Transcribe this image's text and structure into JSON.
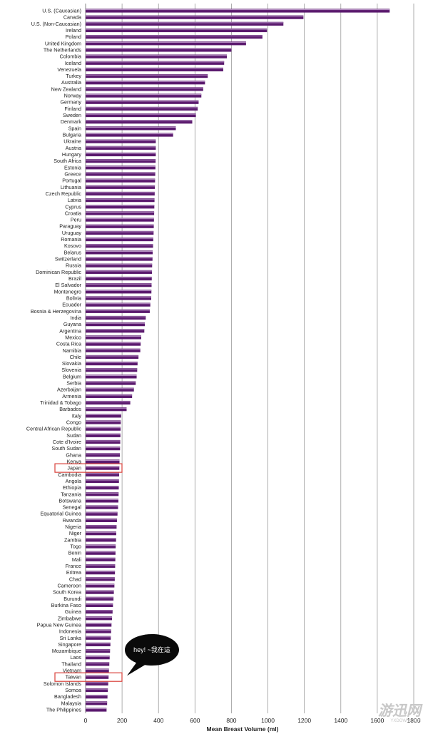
{
  "chart_data": {
    "type": "bar",
    "orientation": "horizontal",
    "xlabel": "Mean Breast Volume (ml)",
    "xlim": [
      0,
      1800
    ],
    "xticks": [
      0,
      200,
      400,
      600,
      800,
      1000,
      1200,
      1400,
      1600,
      1800
    ],
    "categories": [
      "U.S. (Caucasian)",
      "Canada",
      "U.S. (Non-Caucasian)",
      "Ireland",
      "Poland",
      "United Kingdom",
      "The Netherlands",
      "Colombia",
      "Iceland",
      "Venezuela",
      "Turkey",
      "Australia",
      "New Zealand",
      "Norway",
      "Germany",
      "Finland",
      "Sweden",
      "Denmark",
      "Spain",
      "Bulgaria",
      "Ukraine",
      "Austria",
      "Hungary",
      "South Africa",
      "Estonia",
      "Greece",
      "Portugal",
      "Lithuania",
      "Czech Republic",
      "Latvia",
      "Cyprus",
      "Croatia",
      "Peru",
      "Paraguay",
      "Uruguay",
      "Romania",
      "Kosovo",
      "Belarus",
      "Switzerland",
      "Russia",
      "Dominican Republic",
      "Brazil",
      "El Salvador",
      "Montenegro",
      "Bolivia",
      "Ecuador",
      "Bosnia & Herzegovina",
      "India",
      "Guyana",
      "Argentina",
      "Mexico",
      "Costa Rica",
      "Namibia",
      "Chile",
      "Slovakia",
      "Slovenia",
      "Belgium",
      "Serbia",
      "Azerbaijan",
      "Armenia",
      "Trinidad & Tobago",
      "Barbados",
      "Italy",
      "Congo",
      "Central African Republic",
      "Sudan",
      "Cote d'Ivoire",
      "South Sudan",
      "Ghana",
      "Kenya",
      "Japan",
      "Cambodia",
      "Angola",
      "Ethiopia",
      "Tanzania",
      "Botswana",
      "Senegal",
      "Equatorial Guinea",
      "Rwanda",
      "Nigeria",
      "Niger",
      "Zambia",
      "Togo",
      "Benin",
      "Mali",
      "France",
      "Eritrea",
      "Chad",
      "Cameroon",
      "South Korea",
      "Burundi",
      "Burkina Faso",
      "Guinea",
      "Zimbabwe",
      "Papua New Guinea",
      "Indonesia",
      "Sri Lanka",
      "Singapore",
      "Mozambique",
      "Laos",
      "Thailand",
      "Vietnam",
      "Taiwan",
      "Solomon Islands",
      "Somoa",
      "Bangladesh",
      "Malaysia",
      "The Philippines"
    ],
    "values": [
      1668,
      1195,
      1085,
      995,
      970,
      880,
      800,
      775,
      760,
      755,
      670,
      655,
      645,
      635,
      620,
      615,
      605,
      585,
      495,
      480,
      385,
      385,
      385,
      384,
      383,
      382,
      381,
      380,
      379,
      378,
      377,
      376,
      375,
      374,
      373,
      371,
      370,
      368,
      367,
      365,
      364,
      363,
      362,
      361,
      360,
      355,
      352,
      330,
      325,
      322,
      305,
      302,
      300,
      290,
      285,
      283,
      280,
      275,
      265,
      255,
      245,
      225,
      195,
      193,
      192,
      191,
      190,
      189,
      188,
      186,
      185,
      184,
      183,
      182,
      181,
      180,
      178,
      175,
      172,
      170,
      168,
      167,
      165,
      164,
      163,
      162,
      161,
      160,
      158,
      155,
      153,
      150,
      148,
      145,
      142,
      140,
      138,
      136,
      134,
      132,
      130,
      128,
      126,
      124,
      122,
      120,
      118,
      115
    ],
    "bar_color": "#5b1a6e",
    "bar_highlight_color": "#b58fc2",
    "highlighted_categories": [
      "Japan",
      "Taiwan"
    ],
    "highlight_box_color": "#d9403a",
    "grid_color": "#9a9a9a"
  },
  "annotation": {
    "bubble_text": "hey! ~我在這",
    "target_category": "Taiwan",
    "bubble_color": "#0a0a0a"
  },
  "watermark": {
    "text": "游迅网",
    "subtext": "YXDOWN.COM"
  }
}
